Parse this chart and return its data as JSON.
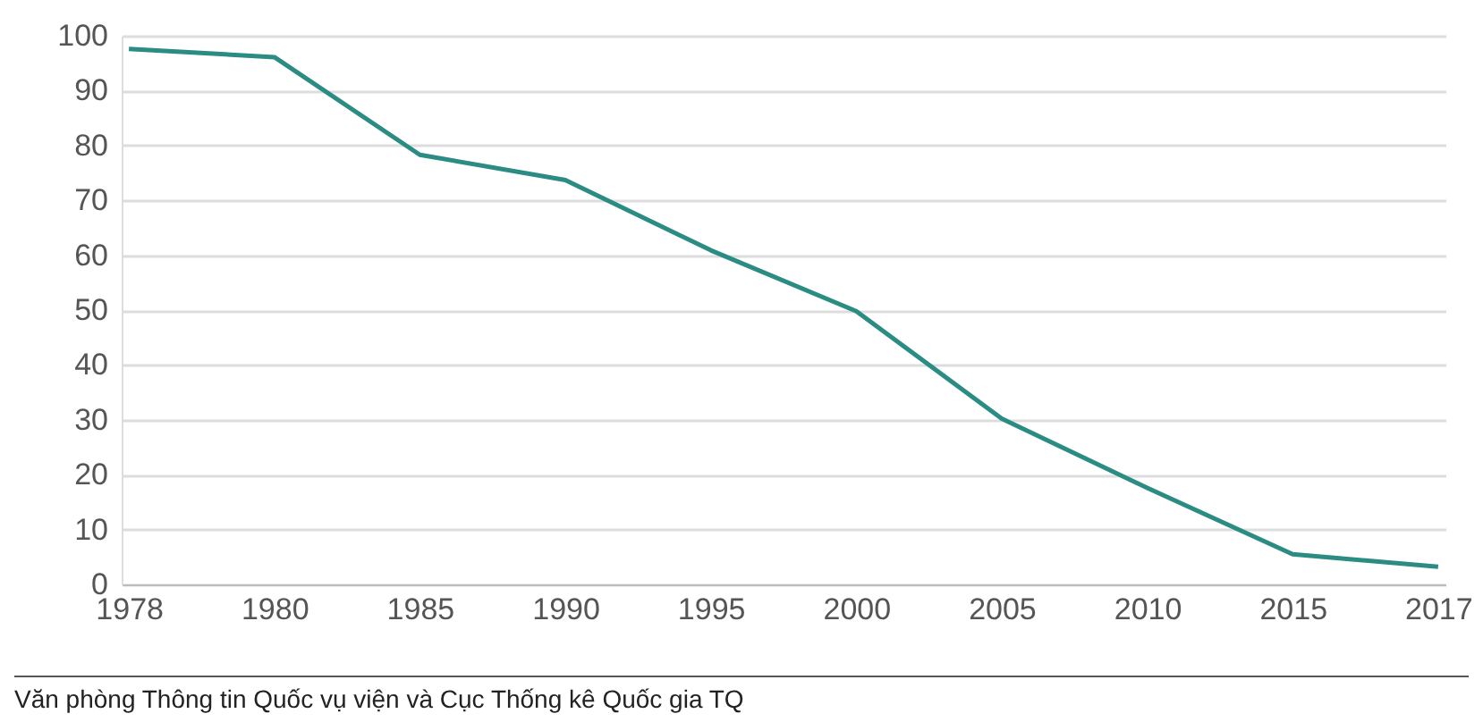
{
  "chart_data": {
    "type": "line",
    "categories": [
      "1978",
      "1980",
      "1985",
      "1990",
      "1995",
      "2000",
      "2005",
      "2010",
      "2015",
      "2017"
    ],
    "series": [
      {
        "color": "#2a8c82",
        "values": [
          97.6,
          96.1,
          78.3,
          73.7,
          60.9,
          49.8,
          30.2,
          17.6,
          5.5,
          3.2
        ]
      }
    ],
    "ylim": [
      0,
      100
    ],
    "yticks": [
      0,
      10,
      20,
      30,
      40,
      50,
      60,
      70,
      80,
      90,
      100
    ],
    "grid": "y",
    "annotations": [
      "Văn phòng Thông tin Quốc vụ viện và Cục Thống kê Quốc gia TQ"
    ]
  }
}
